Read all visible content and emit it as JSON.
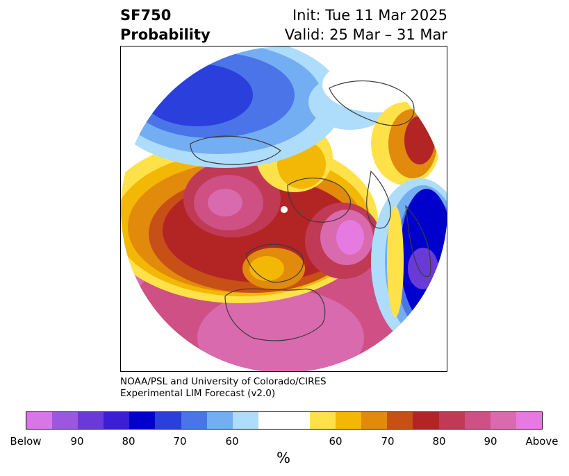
{
  "title": {
    "line1_left": "SF750",
    "line2_left": "Probability",
    "line1_right": "Init: Tue 11 Mar 2025",
    "line2_right": "Valid: 25 Mar – 31 Mar"
  },
  "credit": {
    "line1": "NOAA/PSL and University of Colorado/CIRES",
    "line2": "Experimental LIM Forecast (v2.0)"
  },
  "colorbar": {
    "unit": "%",
    "colors": [
      "#d777e6",
      "#9b57e0",
      "#6a3ad8",
      "#3c1fd4",
      "#0000cc",
      "#2a3fdc",
      "#4a74e8",
      "#74aef2",
      "#aedcfb",
      "#ffffff",
      "#ffe24a",
      "#f3b705",
      "#e28a0c",
      "#c75016",
      "#b32525",
      "#c03a55",
      "#ce5085",
      "#d96aae",
      "#e67ae0"
    ],
    "tick_labels": [
      "Below",
      "90",
      "80",
      "70",
      "60",
      "60",
      "70",
      "80",
      "90",
      "Above"
    ]
  },
  "map": {
    "projection": "north-polar-stereographic",
    "legend_meaning": "Below/Above normal probability"
  }
}
